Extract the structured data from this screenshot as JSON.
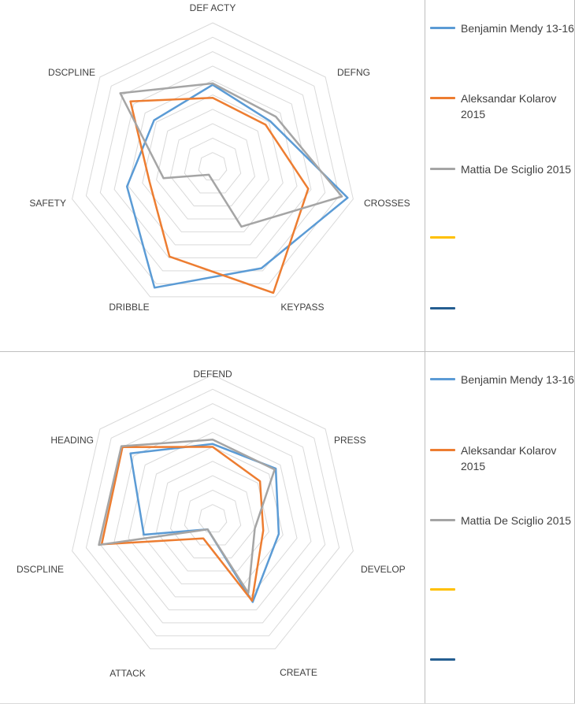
{
  "chart_data": [
    {
      "type": "radar",
      "title": "",
      "axes": [
        "DEF ACTY",
        "DEFNG",
        "CROSSES",
        "KEYPASS",
        "DRIBBLE",
        "SAFETY",
        "DSCPLINE"
      ],
      "range": [
        0,
        10
      ],
      "series": [
        {
          "name": "Benjamin Mendy 13-16",
          "color": "#5B9BD5",
          "values": [
            5.7,
            5.1,
            9.6,
            7.8,
            9.3,
            6.1,
            5.2
          ]
        },
        {
          "name": "Aleksandar Kolarov 2015",
          "color": "#ED7D31",
          "values": [
            4.8,
            4.7,
            6.8,
            9.7,
            6.9,
            4.5,
            7.3
          ]
        },
        {
          "name": "Mattia De Sciglio 2015",
          "color": "#A5A5A5",
          "values": [
            5.8,
            5.6,
            9.2,
            4.6,
            0.6,
            3.5,
            8.2
          ]
        },
        {
          "name": "",
          "color": "#FFC000",
          "values": []
        },
        {
          "name": "",
          "color": "#255E91",
          "values": []
        }
      ]
    },
    {
      "type": "radar",
      "title": "",
      "axes": [
        "DEFEND",
        "PRESS",
        "DEVELOP",
        "CREATE",
        "ATTACK",
        "DSCPLINE",
        "HEADING"
      ],
      "range": [
        0,
        10
      ],
      "series": [
        {
          "name": "Benjamin Mendy 13-16",
          "color": "#5B9BD5",
          "values": [
            5.2,
            5.6,
            4.7,
            6.4,
            0.8,
            4.9,
            7.3
          ]
        },
        {
          "name": "Aleksandar Kolarov 2015",
          "color": "#ED7D31",
          "values": [
            5.0,
            4.2,
            3.6,
            6.3,
            1.5,
            7.9,
            8.0
          ]
        },
        {
          "name": "Mattia De Sciglio 2015",
          "color": "#A5A5A5",
          "values": [
            5.5,
            5.5,
            3.0,
            5.7,
            0.8,
            8.1,
            8.1
          ]
        },
        {
          "name": "",
          "color": "#FFC000",
          "values": []
        },
        {
          "name": "",
          "color": "#255E91",
          "values": []
        }
      ]
    }
  ]
}
